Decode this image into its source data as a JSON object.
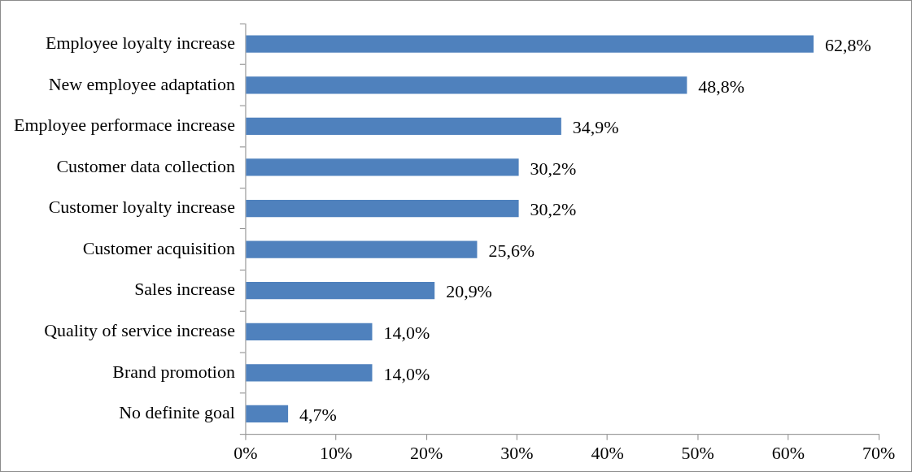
{
  "chart_data": {
    "type": "bar",
    "orientation": "horizontal",
    "categories": [
      "Employee loyalty increase",
      "New employee adaptation",
      "Employee performace increase",
      "Customer data collection",
      "Customer loyalty increase",
      "Customer acquisition",
      "Sales increase",
      "Quality of service increase",
      "Brand promotion",
      "No definite goal"
    ],
    "values": [
      62.8,
      48.8,
      34.9,
      30.2,
      30.2,
      25.6,
      20.9,
      14.0,
      14.0,
      4.7
    ],
    "value_labels": [
      "62,8%",
      "48,8%",
      "34,9%",
      "30,2%",
      "30,2%",
      "25,6%",
      "20,9%",
      "14,0%",
      "14,0%",
      "4,7%"
    ],
    "color": "#4f81bd",
    "xlim": [
      0,
      70
    ],
    "xticks": [
      {
        "value": 0,
        "label": "0%"
      },
      {
        "value": 10,
        "label": "10%"
      },
      {
        "value": 20,
        "label": "20%"
      },
      {
        "value": 30,
        "label": "30%"
      },
      {
        "value": 40,
        "label": "40%"
      },
      {
        "value": 50,
        "label": "50%"
      },
      {
        "value": 60,
        "label": "60%"
      },
      {
        "value": 70,
        "label": "70%"
      }
    ],
    "grid": false,
    "legend": false
  }
}
